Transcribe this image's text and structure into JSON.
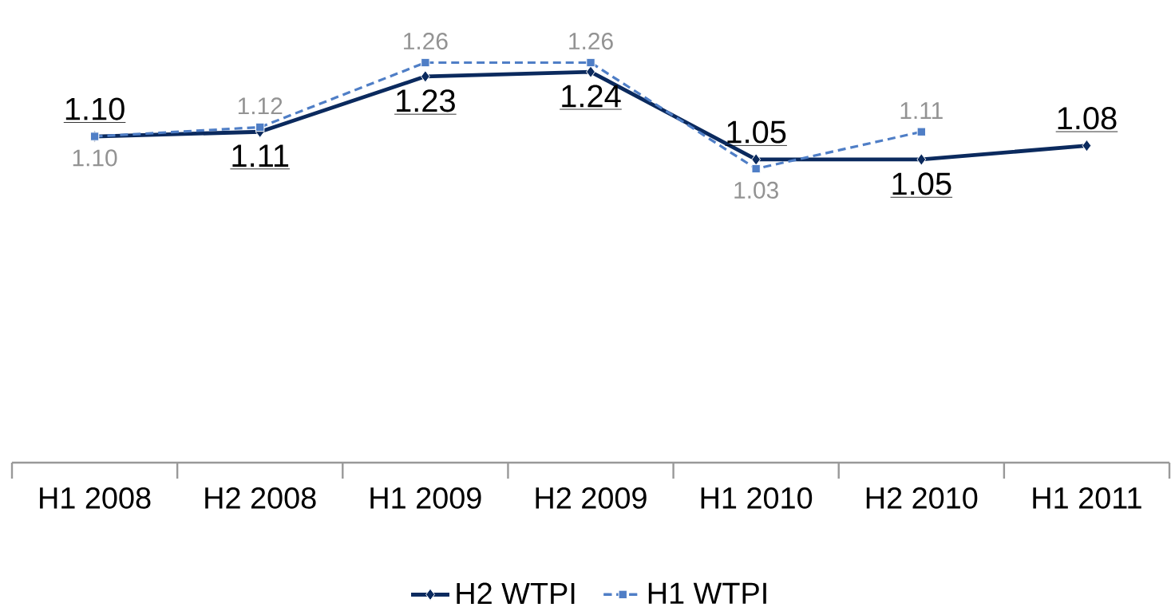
{
  "chart_data": {
    "type": "line",
    "categories": [
      "H1 2008",
      "H2 2008",
      "H1 2009",
      "H2 2009",
      "H1 2010",
      "H2 2010",
      "H1 2011"
    ],
    "series": [
      {
        "name": "H2 WTPI",
        "color": "#0b2a5e",
        "marker": "diamond",
        "line_style": "solid",
        "values": [
          1.1,
          1.11,
          1.23,
          1.24,
          1.05,
          1.05,
          1.08
        ],
        "value_labels": [
          "1.10",
          "1.11",
          "1.23",
          "1.24",
          "1.05",
          "1.05",
          "1.08"
        ]
      },
      {
        "name": "H1 WTPI",
        "color": "#4f7ec6",
        "marker": "square",
        "line_style": "dashed",
        "values": [
          1.1,
          1.12,
          1.26,
          1.26,
          1.03,
          1.11,
          null
        ],
        "value_labels": [
          "1.10",
          "1.12",
          "1.26",
          "1.26",
          "1.03",
          "1.11",
          null
        ]
      }
    ],
    "legend": "bottom"
  }
}
